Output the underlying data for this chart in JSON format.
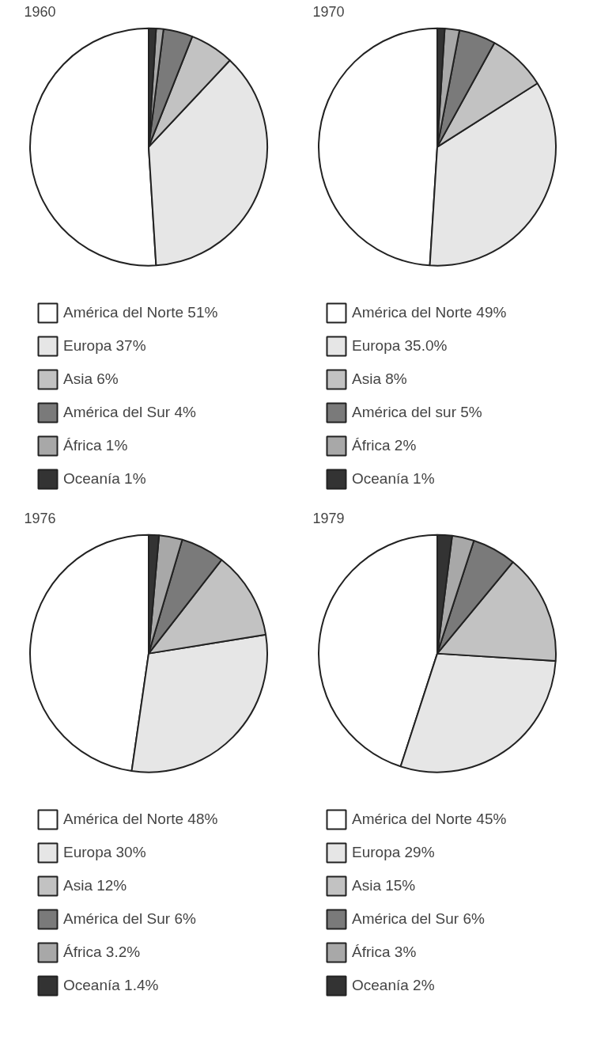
{
  "chart_data": [
    {
      "type": "pie",
      "title": "1960",
      "categories": [
        "América del Norte",
        "Europa",
        "Asia",
        "América del Sur",
        "África",
        "Oceanía"
      ],
      "values": [
        51,
        37,
        6,
        4,
        1,
        1
      ],
      "value_labels": [
        "51%",
        "37%",
        "6%",
        "4%",
        "1%",
        "1%"
      ],
      "colors": [
        "#ffffff",
        "#e6e6e6",
        "#c2c2c2",
        "#7a7a7a",
        "#a8a8a8",
        "#333333"
      ],
      "legend": "bottom"
    },
    {
      "type": "pie",
      "title": "1970",
      "categories": [
        "América del Norte",
        "Europa",
        "Asia",
        "América del sur",
        "África",
        "Oceanía"
      ],
      "values": [
        49,
        35.0,
        8,
        5,
        2,
        1
      ],
      "value_labels": [
        "49%",
        "35.0%",
        "8%",
        "5%",
        "2%",
        "1%"
      ],
      "colors": [
        "#ffffff",
        "#e6e6e6",
        "#c2c2c2",
        "#7a7a7a",
        "#a8a8a8",
        "#333333"
      ],
      "legend": "bottom"
    },
    {
      "type": "pie",
      "title": "1976",
      "categories": [
        "América del Norte",
        "Europa",
        "Asia",
        "América del Sur",
        "África",
        "Oceanía"
      ],
      "values": [
        48,
        30,
        12,
        6,
        3.2,
        1.4
      ],
      "value_labels": [
        "48%",
        "30%",
        "12%",
        "6%",
        "3.2%",
        "1.4%"
      ],
      "colors": [
        "#ffffff",
        "#e6e6e6",
        "#c2c2c2",
        "#7a7a7a",
        "#a8a8a8",
        "#333333"
      ],
      "legend": "bottom"
    },
    {
      "type": "pie",
      "title": "1979",
      "categories": [
        "América del Norte",
        "Europa",
        "Asia",
        "América del Sur",
        "África",
        "Oceanía"
      ],
      "values": [
        45,
        29,
        15,
        6,
        3,
        2
      ],
      "value_labels": [
        "45%",
        "29%",
        "15%",
        "6%",
        "3%",
        "2%"
      ],
      "colors": [
        "#ffffff",
        "#e6e6e6",
        "#c2c2c2",
        "#7a7a7a",
        "#a8a8a8",
        "#333333"
      ],
      "legend": "bottom"
    }
  ]
}
